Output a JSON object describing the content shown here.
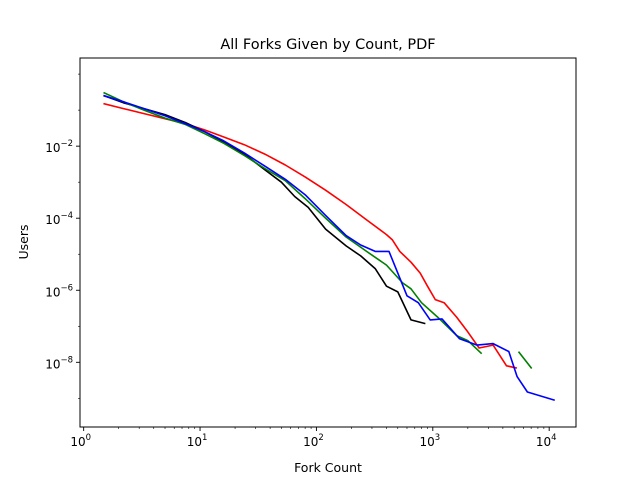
{
  "chart_data": {
    "type": "line",
    "title": "All Forks Given by Count, PDF",
    "xlabel": "Fork Count",
    "ylabel": "Users",
    "xscale": "log",
    "yscale": "log",
    "xlim": [
      0.93,
      17000
    ],
    "ylim": [
      1.6e-10,
      2.8
    ],
    "grid": false,
    "legend": "none",
    "x_ticks": [
      {
        "base": "10",
        "exp": "0",
        "value": 1
      },
      {
        "base": "10",
        "exp": "1",
        "value": 10
      },
      {
        "base": "10",
        "exp": "2",
        "value": 100
      },
      {
        "base": "10",
        "exp": "3",
        "value": 1000
      },
      {
        "base": "10",
        "exp": "4",
        "value": 10000
      }
    ],
    "y_ticks": [
      {
        "base": "10",
        "exp": "−8",
        "value": 1e-08
      },
      {
        "base": "10",
        "exp": "−6",
        "value": 1e-06
      },
      {
        "base": "10",
        "exp": "−4",
        "value": 0.0001
      },
      {
        "base": "10",
        "exp": "−2",
        "value": 0.01
      }
    ],
    "series": [
      {
        "color": "#ff0000",
        "segments": [
          [
            [
              1.5,
              0.15
            ],
            [
              2.2,
              0.11
            ],
            [
              3.3,
              0.08
            ],
            [
              5,
              0.058
            ],
            [
              7.5,
              0.042
            ],
            [
              11,
              0.028
            ],
            [
              16,
              0.018
            ],
            [
              24,
              0.011
            ],
            [
              36,
              0.006
            ],
            [
              54,
              0.003
            ],
            [
              80,
              0.0014
            ],
            [
              120,
              0.0006
            ],
            [
              180,
              0.00024
            ],
            [
              270,
              9e-05
            ],
            [
              400,
              3.5e-05
            ],
            [
              450,
              2.5e-05
            ],
            [
              520,
              1.2e-05
            ],
            [
              650,
              6e-06
            ],
            [
              780,
              3e-06
            ],
            [
              900,
              1.3e-06
            ],
            [
              1050,
              5.5e-07
            ],
            [
              1250,
              4.5e-07
            ],
            [
              1600,
              1.8e-07
            ],
            [
              2000,
              7e-08
            ],
            [
              2500,
              2.5e-08
            ],
            [
              3300,
              3e-08
            ],
            [
              4300,
              8e-09
            ],
            [
              5200,
              7e-09
            ]
          ]
        ]
      },
      {
        "color": "#000000",
        "segments": [
          [
            [
              1.5,
              0.25
            ],
            [
              2.2,
              0.16
            ],
            [
              3.3,
              0.11
            ],
            [
              5,
              0.075
            ],
            [
              7.5,
              0.045
            ],
            [
              11,
              0.025
            ],
            [
              16,
              0.013
            ],
            [
              24,
              0.006
            ],
            [
              36,
              0.0022
            ],
            [
              50,
              0.001
            ],
            [
              65,
              0.0004
            ],
            [
              85,
              0.0002
            ],
            [
              120,
              5e-05
            ],
            [
              180,
              1.7e-05
            ],
            [
              240,
              9e-06
            ],
            [
              320,
              4e-06
            ],
            [
              400,
              1.3e-06
            ],
            [
              500,
              9e-07
            ],
            [
              650,
              1.5e-07
            ],
            [
              850,
              1.2e-07
            ]
          ]
        ]
      },
      {
        "color": "#008000",
        "segments": [
          [
            [
              1.5,
              0.3
            ],
            [
              2.2,
              0.17
            ],
            [
              3.3,
              0.1
            ],
            [
              5,
              0.06
            ],
            [
              7.5,
              0.04
            ],
            [
              11,
              0.022
            ],
            [
              16,
              0.012
            ],
            [
              24,
              0.0055
            ],
            [
              36,
              0.0024
            ],
            [
              54,
              0.0011
            ],
            [
              80,
              0.00035
            ],
            [
              120,
              0.0001
            ],
            [
              180,
              3e-05
            ],
            [
              270,
              1.2e-05
            ],
            [
              400,
              5e-06
            ],
            [
              550,
              1.6e-06
            ],
            [
              650,
              1.1e-06
            ],
            [
              800,
              4.5e-07
            ],
            [
              1100,
              1.8e-07
            ],
            [
              1600,
              5.5e-08
            ],
            [
              2000,
              4e-08
            ],
            [
              2600,
              1.8e-08
            ]
          ],
          [
            [
              5500,
              1.9e-08
            ],
            [
              7000,
              7e-09
            ]
          ]
        ]
      },
      {
        "color": "#0000ff",
        "segments": [
          [
            [
              1.5,
              0.25
            ],
            [
              2.2,
              0.17
            ],
            [
              3.3,
              0.11
            ],
            [
              5,
              0.07
            ],
            [
              7.5,
              0.042
            ],
            [
              11,
              0.025
            ],
            [
              16,
              0.014
            ],
            [
              24,
              0.0065
            ],
            [
              36,
              0.0028
            ],
            [
              54,
              0.0012
            ],
            [
              80,
              0.00045
            ],
            [
              120,
              0.00012
            ],
            [
              180,
              3.3e-05
            ],
            [
              240,
              1.8e-05
            ],
            [
              320,
              1.2e-05
            ],
            [
              420,
              1.2e-05
            ],
            [
              500,
              3e-06
            ],
            [
              600,
              7e-07
            ],
            [
              750,
              4.5e-07
            ],
            [
              950,
              1.5e-07
            ],
            [
              1200,
              1.6e-07
            ],
            [
              1700,
              4.5e-08
            ],
            [
              2400,
              3e-08
            ],
            [
              3300,
              3.3e-08
            ],
            [
              4500,
              2e-08
            ],
            [
              5300,
              4e-09
            ],
            [
              6500,
              1.5e-09
            ],
            [
              11000,
              9e-10
            ]
          ]
        ]
      }
    ]
  }
}
